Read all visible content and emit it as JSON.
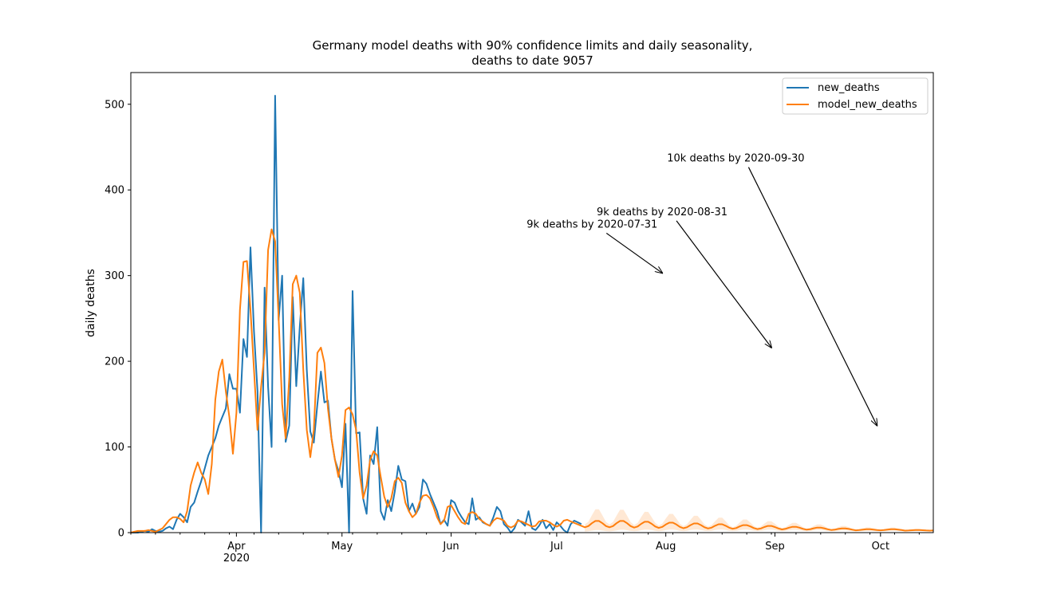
{
  "chart_data": {
    "type": "line",
    "title_line1": "Germany model deaths with 90% confidence limits and daily seasonality,",
    "title_line2": "deaths to date 9057",
    "xlabel": "",
    "ylabel": "daily deaths",
    "x_range": [
      "2020-03-02",
      "2020-10-16"
    ],
    "ylim": [
      0,
      537
    ],
    "x_ticks": [
      {
        "date": "2020-04-01",
        "label": "Apr",
        "sublabel": "2020"
      },
      {
        "date": "2020-05-01",
        "label": "May",
        "sublabel": ""
      },
      {
        "date": "2020-06-01",
        "label": "Jun",
        "sublabel": ""
      },
      {
        "date": "2020-07-01",
        "label": "Jul",
        "sublabel": ""
      },
      {
        "date": "2020-08-01",
        "label": "Aug",
        "sublabel": ""
      },
      {
        "date": "2020-09-01",
        "label": "Sep",
        "sublabel": ""
      },
      {
        "date": "2020-10-01",
        "label": "Oct",
        "sublabel": ""
      }
    ],
    "y_ticks": [
      0,
      100,
      200,
      300,
      400,
      500
    ],
    "grid": false,
    "legend_position": "top-right",
    "series": [
      {
        "name": "new_deaths",
        "color": "#1f77b4",
        "start_date": "2020-03-02",
        "values": [
          0,
          0,
          0,
          1,
          2,
          1,
          4,
          2,
          1,
          2,
          5,
          7,
          4,
          15,
          22,
          18,
          12,
          30,
          35,
          48,
          60,
          75,
          90,
          100,
          110,
          125,
          135,
          145,
          185,
          168,
          168,
          140,
          226,
          205,
          333,
          235,
          165,
          0,
          286,
          170,
          100,
          510,
          248,
          300,
          106,
          125,
          275,
          171,
          240,
          297,
          190,
          118,
          105,
          150,
          188,
          152,
          154,
          110,
          85,
          72,
          53,
          127,
          0,
          282,
          116,
          117,
          40,
          22,
          90,
          80,
          123,
          25,
          15,
          38,
          25,
          48,
          78,
          62,
          60,
          25,
          34,
          22,
          30,
          62,
          57,
          45,
          35,
          25,
          10,
          15,
          8,
          38,
          35,
          25,
          18,
          12,
          10,
          40,
          15,
          18,
          12,
          10,
          8,
          18,
          30,
          25,
          10,
          6,
          0,
          5,
          15,
          12,
          8,
          25,
          5,
          3,
          8,
          15,
          5,
          10,
          3,
          12,
          8,
          3,
          0,
          10,
          14,
          12,
          10
        ]
      },
      {
        "name": "model_new_deaths",
        "color": "#ff7f0e",
        "start_date": "2020-03-02",
        "values": [
          0,
          1,
          2,
          2,
          2,
          3,
          2,
          1,
          3,
          5,
          10,
          15,
          18,
          18,
          16,
          12,
          25,
          55,
          70,
          82,
          70,
          62,
          45,
          80,
          155,
          188,
          202,
          165,
          135,
          92,
          140,
          260,
          316,
          317,
          260,
          190,
          120,
          170,
          210,
          330,
          354,
          340,
          250,
          150,
          110,
          180,
          290,
          300,
          280,
          190,
          120,
          88,
          120,
          210,
          216,
          198,
          145,
          110,
          85,
          65,
          90,
          143,
          146,
          138,
          120,
          70,
          40,
          55,
          85,
          95,
          90,
          65,
          42,
          30,
          40,
          60,
          64,
          58,
          35,
          25,
          18,
          22,
          35,
          43,
          44,
          40,
          30,
          18,
          10,
          14,
          30,
          32,
          25,
          18,
          12,
          10,
          22,
          24,
          22,
          16,
          13,
          10,
          8,
          14,
          17,
          16,
          14,
          8,
          6,
          8,
          14,
          13,
          11,
          9,
          7,
          8,
          13,
          14,
          14,
          12,
          9,
          7,
          9,
          14,
          15,
          13
        ],
        "projection_start_date": "2020-07-09",
        "projection_weekly_peaks": [
          14,
          14,
          13,
          12,
          11,
          10,
          9,
          8,
          7,
          6,
          5,
          4,
          4,
          3,
          3
        ],
        "projection_min": 2,
        "projection_end_date": "2020-10-16"
      }
    ],
    "confidence_band": {
      "label": "90% confidence limits",
      "color": "#ff7f0e",
      "opacity": 0.18
    },
    "annotations": [
      {
        "text": "9k deaths by 2020-07-31",
        "point": {
          "date": "2020-07-31",
          "value": 303
        }
      },
      {
        "text": "9k deaths by 2020-08-31",
        "point": {
          "date": "2020-08-31",
          "value": 216
        }
      },
      {
        "text": "10k deaths by 2020-09-30",
        "point": {
          "date": "2020-09-30",
          "value": 125
        }
      }
    ]
  }
}
